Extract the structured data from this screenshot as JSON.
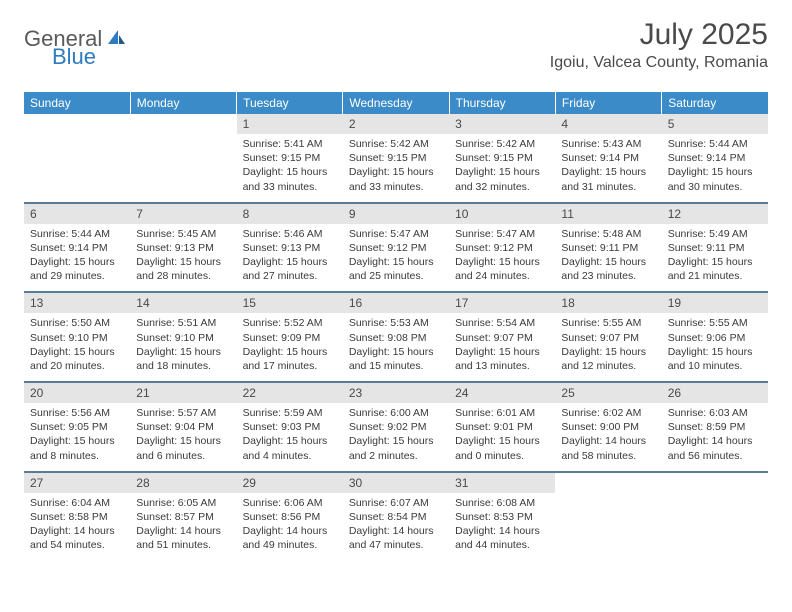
{
  "logo": {
    "part1": "General",
    "part2": "Blue"
  },
  "title": "July 2025",
  "location": "Igoiu, Valcea County, Romania",
  "day_headers": [
    "Sunday",
    "Monday",
    "Tuesday",
    "Wednesday",
    "Thursday",
    "Friday",
    "Saturday"
  ],
  "colors": {
    "header_bg": "#3b8bc9",
    "header_fg": "#ffffff",
    "daynum_bg": "#e5e5e5",
    "row_border": "#5a7a9a",
    "logo_gray": "#5a5a5a",
    "logo_blue": "#2f7bbf",
    "text": "#3a3a3a"
  },
  "weeks": [
    [
      {
        "day": "",
        "sunrise": "",
        "sunset": "",
        "daylight": "",
        "empty": true
      },
      {
        "day": "",
        "sunrise": "",
        "sunset": "",
        "daylight": "",
        "empty": true
      },
      {
        "day": "1",
        "sunrise": "Sunrise: 5:41 AM",
        "sunset": "Sunset: 9:15 PM",
        "daylight": "Daylight: 15 hours and 33 minutes."
      },
      {
        "day": "2",
        "sunrise": "Sunrise: 5:42 AM",
        "sunset": "Sunset: 9:15 PM",
        "daylight": "Daylight: 15 hours and 33 minutes."
      },
      {
        "day": "3",
        "sunrise": "Sunrise: 5:42 AM",
        "sunset": "Sunset: 9:15 PM",
        "daylight": "Daylight: 15 hours and 32 minutes."
      },
      {
        "day": "4",
        "sunrise": "Sunrise: 5:43 AM",
        "sunset": "Sunset: 9:14 PM",
        "daylight": "Daylight: 15 hours and 31 minutes."
      },
      {
        "day": "5",
        "sunrise": "Sunrise: 5:44 AM",
        "sunset": "Sunset: 9:14 PM",
        "daylight": "Daylight: 15 hours and 30 minutes."
      }
    ],
    [
      {
        "day": "6",
        "sunrise": "Sunrise: 5:44 AM",
        "sunset": "Sunset: 9:14 PM",
        "daylight": "Daylight: 15 hours and 29 minutes."
      },
      {
        "day": "7",
        "sunrise": "Sunrise: 5:45 AM",
        "sunset": "Sunset: 9:13 PM",
        "daylight": "Daylight: 15 hours and 28 minutes."
      },
      {
        "day": "8",
        "sunrise": "Sunrise: 5:46 AM",
        "sunset": "Sunset: 9:13 PM",
        "daylight": "Daylight: 15 hours and 27 minutes."
      },
      {
        "day": "9",
        "sunrise": "Sunrise: 5:47 AM",
        "sunset": "Sunset: 9:12 PM",
        "daylight": "Daylight: 15 hours and 25 minutes."
      },
      {
        "day": "10",
        "sunrise": "Sunrise: 5:47 AM",
        "sunset": "Sunset: 9:12 PM",
        "daylight": "Daylight: 15 hours and 24 minutes."
      },
      {
        "day": "11",
        "sunrise": "Sunrise: 5:48 AM",
        "sunset": "Sunset: 9:11 PM",
        "daylight": "Daylight: 15 hours and 23 minutes."
      },
      {
        "day": "12",
        "sunrise": "Sunrise: 5:49 AM",
        "sunset": "Sunset: 9:11 PM",
        "daylight": "Daylight: 15 hours and 21 minutes."
      }
    ],
    [
      {
        "day": "13",
        "sunrise": "Sunrise: 5:50 AM",
        "sunset": "Sunset: 9:10 PM",
        "daylight": "Daylight: 15 hours and 20 minutes."
      },
      {
        "day": "14",
        "sunrise": "Sunrise: 5:51 AM",
        "sunset": "Sunset: 9:10 PM",
        "daylight": "Daylight: 15 hours and 18 minutes."
      },
      {
        "day": "15",
        "sunrise": "Sunrise: 5:52 AM",
        "sunset": "Sunset: 9:09 PM",
        "daylight": "Daylight: 15 hours and 17 minutes."
      },
      {
        "day": "16",
        "sunrise": "Sunrise: 5:53 AM",
        "sunset": "Sunset: 9:08 PM",
        "daylight": "Daylight: 15 hours and 15 minutes."
      },
      {
        "day": "17",
        "sunrise": "Sunrise: 5:54 AM",
        "sunset": "Sunset: 9:07 PM",
        "daylight": "Daylight: 15 hours and 13 minutes."
      },
      {
        "day": "18",
        "sunrise": "Sunrise: 5:55 AM",
        "sunset": "Sunset: 9:07 PM",
        "daylight": "Daylight: 15 hours and 12 minutes."
      },
      {
        "day": "19",
        "sunrise": "Sunrise: 5:55 AM",
        "sunset": "Sunset: 9:06 PM",
        "daylight": "Daylight: 15 hours and 10 minutes."
      }
    ],
    [
      {
        "day": "20",
        "sunrise": "Sunrise: 5:56 AM",
        "sunset": "Sunset: 9:05 PM",
        "daylight": "Daylight: 15 hours and 8 minutes."
      },
      {
        "day": "21",
        "sunrise": "Sunrise: 5:57 AM",
        "sunset": "Sunset: 9:04 PM",
        "daylight": "Daylight: 15 hours and 6 minutes."
      },
      {
        "day": "22",
        "sunrise": "Sunrise: 5:59 AM",
        "sunset": "Sunset: 9:03 PM",
        "daylight": "Daylight: 15 hours and 4 minutes."
      },
      {
        "day": "23",
        "sunrise": "Sunrise: 6:00 AM",
        "sunset": "Sunset: 9:02 PM",
        "daylight": "Daylight: 15 hours and 2 minutes."
      },
      {
        "day": "24",
        "sunrise": "Sunrise: 6:01 AM",
        "sunset": "Sunset: 9:01 PM",
        "daylight": "Daylight: 15 hours and 0 minutes."
      },
      {
        "day": "25",
        "sunrise": "Sunrise: 6:02 AM",
        "sunset": "Sunset: 9:00 PM",
        "daylight": "Daylight: 14 hours and 58 minutes."
      },
      {
        "day": "26",
        "sunrise": "Sunrise: 6:03 AM",
        "sunset": "Sunset: 8:59 PM",
        "daylight": "Daylight: 14 hours and 56 minutes."
      }
    ],
    [
      {
        "day": "27",
        "sunrise": "Sunrise: 6:04 AM",
        "sunset": "Sunset: 8:58 PM",
        "daylight": "Daylight: 14 hours and 54 minutes."
      },
      {
        "day": "28",
        "sunrise": "Sunrise: 6:05 AM",
        "sunset": "Sunset: 8:57 PM",
        "daylight": "Daylight: 14 hours and 51 minutes."
      },
      {
        "day": "29",
        "sunrise": "Sunrise: 6:06 AM",
        "sunset": "Sunset: 8:56 PM",
        "daylight": "Daylight: 14 hours and 49 minutes."
      },
      {
        "day": "30",
        "sunrise": "Sunrise: 6:07 AM",
        "sunset": "Sunset: 8:54 PM",
        "daylight": "Daylight: 14 hours and 47 minutes."
      },
      {
        "day": "31",
        "sunrise": "Sunrise: 6:08 AM",
        "sunset": "Sunset: 8:53 PM",
        "daylight": "Daylight: 14 hours and 44 minutes."
      },
      {
        "day": "",
        "sunrise": "",
        "sunset": "",
        "daylight": "",
        "empty": true
      },
      {
        "day": "",
        "sunrise": "",
        "sunset": "",
        "daylight": "",
        "empty": true
      }
    ]
  ]
}
